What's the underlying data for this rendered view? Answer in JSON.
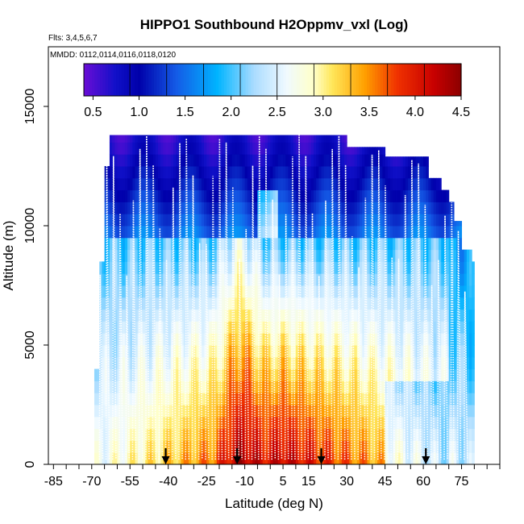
{
  "chart_data": {
    "type": "heatmap",
    "title": "HIPPO1 Southbound H2Oppmv_vxl (Log)",
    "notes": [
      "Flts: 3,4,5,6,7",
      "MMDD: 0112,0114,0116,0118,0120"
    ],
    "xlabel": "Latitude (deg N)",
    "ylabel": "Altitude (m)",
    "xlim": [
      -87,
      90
    ],
    "ylim": [
      0,
      17500
    ],
    "x_ticks": [
      -85,
      -70,
      -55,
      -40,
      -25,
      -10,
      5,
      15,
      30,
      45,
      60,
      75
    ],
    "y_ticks": [
      0,
      5000,
      10000,
      15000
    ],
    "colorbar": {
      "min": 0.4,
      "max": 4.5,
      "ticks": [
        "0.5",
        "1.0",
        "1.5",
        "2.0",
        "2.5",
        "3.0",
        "3.5",
        "4.0",
        "4.5"
      ],
      "tick_values": [
        0.5,
        1.0,
        1.5,
        2.0,
        2.5,
        3.0,
        3.5,
        4.0,
        4.5
      ]
    },
    "markers": {
      "type": "arrow",
      "latitudes": [
        -41,
        -13,
        20,
        61
      ]
    },
    "colors": {
      "low": "#6a0dd6",
      "mid_low": "#1010c8",
      "mid": "#00c0ff",
      "neutral": "#ffffd8",
      "mid_high": "#ffa000",
      "high": "#a00000"
    },
    "field_description": "log water vapour mixing ratio along flight profiles; high values (~4-4.5) near the surface in the tropics, low values (~0.5-1.0) above 10000 m"
  }
}
